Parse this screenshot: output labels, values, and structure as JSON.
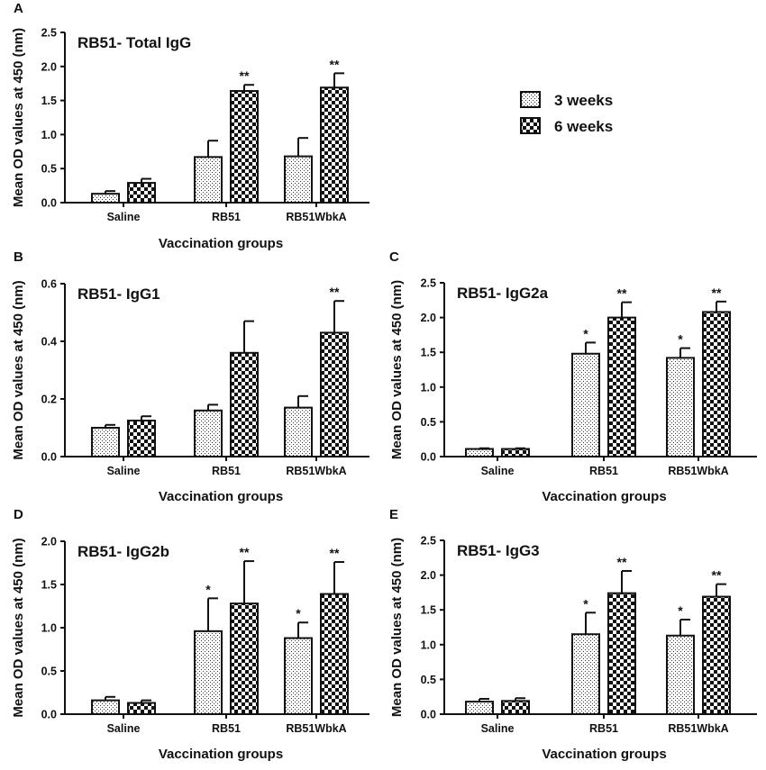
{
  "figure": {
    "legend": [
      {
        "name": "3 weeks",
        "pattern": "dots"
      },
      {
        "name": "6 weeks",
        "pattern": "checker"
      }
    ]
  },
  "colors": {
    "ink": "#111111",
    "background": "#ffffff"
  },
  "chart_data": [
    {
      "panel": "A",
      "type": "bar",
      "title": "RB51- Total IgG",
      "xlabel": "Vaccination groups",
      "ylabel": "Mean OD values at 450 (nm)",
      "ylim": [
        0,
        2.5
      ],
      "yticks": [
        "0.0",
        "0.5",
        "1.0",
        "1.5",
        "2.0",
        "2.5"
      ],
      "categories": [
        "Saline",
        "RB51",
        "RB51WbkA"
      ],
      "series": [
        {
          "name": "3 weeks",
          "values": [
            0.13,
            0.67,
            0.68
          ],
          "errors": [
            0.04,
            0.24,
            0.27
          ],
          "significance": [
            "",
            "",
            ""
          ]
        },
        {
          "name": "6 weeks",
          "values": [
            0.29,
            1.64,
            1.69
          ],
          "errors": [
            0.06,
            0.09,
            0.21
          ],
          "significance": [
            "",
            "**",
            "**"
          ]
        }
      ]
    },
    {
      "panel": "B",
      "type": "bar",
      "title": "RB51- IgG1",
      "xlabel": "Vaccination groups",
      "ylabel": "Mean OD values at 450 (nm)",
      "ylim": [
        0,
        0.6
      ],
      "yticks": [
        "0.0",
        "0.2",
        "0.4",
        "0.6"
      ],
      "categories": [
        "Saline",
        "RB51",
        "RB51WbkA"
      ],
      "series": [
        {
          "name": "3 weeks",
          "values": [
            0.1,
            0.16,
            0.17
          ],
          "errors": [
            0.01,
            0.02,
            0.04
          ],
          "significance": [
            "",
            "",
            ""
          ]
        },
        {
          "name": "6 weeks",
          "values": [
            0.125,
            0.36,
            0.43
          ],
          "errors": [
            0.015,
            0.11,
            0.11
          ],
          "significance": [
            "",
            "",
            "**"
          ]
        }
      ]
    },
    {
      "panel": "C",
      "type": "bar",
      "title": "RB51- IgG2a",
      "xlabel": "Vaccination groups",
      "ylabel": "Mean OD values at 450 (nm)",
      "ylim": [
        0,
        2.5
      ],
      "yticks": [
        "0.0",
        "0.5",
        "1.0",
        "1.5",
        "2.0",
        "2.5"
      ],
      "categories": [
        "Saline",
        "RB51",
        "RB51WbkA"
      ],
      "series": [
        {
          "name": "3 weeks",
          "values": [
            0.11,
            1.48,
            1.42
          ],
          "errors": [
            0.01,
            0.16,
            0.14
          ],
          "significance": [
            "",
            "*",
            "*"
          ]
        },
        {
          "name": "6 weeks",
          "values": [
            0.11,
            2.0,
            2.08
          ],
          "errors": [
            0.01,
            0.22,
            0.15
          ],
          "significance": [
            "",
            "**",
            "**"
          ]
        }
      ]
    },
    {
      "panel": "D",
      "type": "bar",
      "title": "RB51- IgG2b",
      "xlabel": "Vaccination groups",
      "ylabel": "Mean OD values at 450 (nm)",
      "ylim": [
        0,
        2.0
      ],
      "yticks": [
        "0.0",
        "0.5",
        "1.0",
        "1.5",
        "2.0"
      ],
      "categories": [
        "Saline",
        "RB51",
        "RB51WbkA"
      ],
      "series": [
        {
          "name": "3 weeks",
          "values": [
            0.16,
            0.96,
            0.88
          ],
          "errors": [
            0.04,
            0.38,
            0.18
          ],
          "significance": [
            "",
            "*",
            "*"
          ]
        },
        {
          "name": "6 weeks",
          "values": [
            0.13,
            1.28,
            1.39
          ],
          "errors": [
            0.03,
            0.49,
            0.37
          ],
          "significance": [
            "",
            "**",
            "**"
          ]
        }
      ]
    },
    {
      "panel": "E",
      "type": "bar",
      "title": "RB51- IgG3",
      "xlabel": "Vaccination groups",
      "ylabel": "Mean OD values at 450 (nm)",
      "ylim": [
        0,
        2.5
      ],
      "yticks": [
        "0.0",
        "0.5",
        "1.0",
        "1.5",
        "2.0",
        "2.5"
      ],
      "categories": [
        "Saline",
        "RB51",
        "RB51WbkA"
      ],
      "series": [
        {
          "name": "3 weeks",
          "values": [
            0.18,
            1.15,
            1.13
          ],
          "errors": [
            0.04,
            0.31,
            0.23
          ],
          "significance": [
            "",
            "*",
            "*"
          ]
        },
        {
          "name": "6 weeks",
          "values": [
            0.19,
            1.74,
            1.69
          ],
          "errors": [
            0.04,
            0.32,
            0.18
          ],
          "significance": [
            "",
            "**",
            "**"
          ]
        }
      ]
    }
  ]
}
